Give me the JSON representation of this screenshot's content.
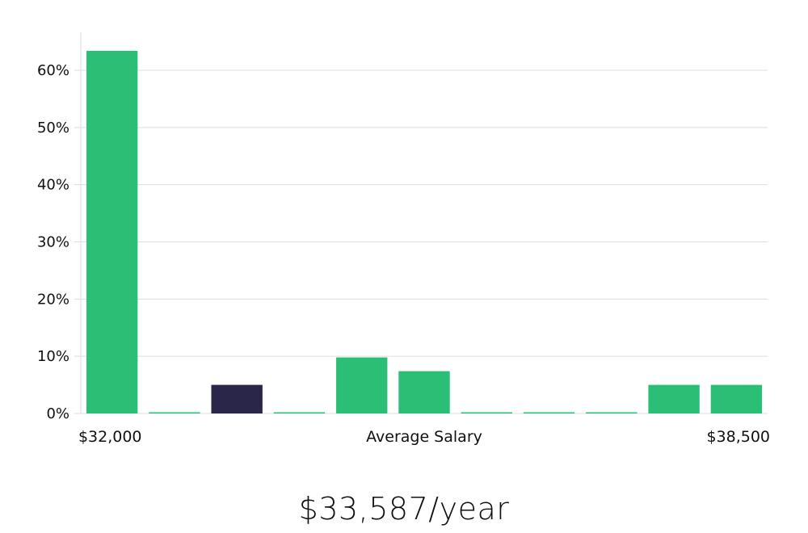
{
  "chart_data": {
    "type": "bar",
    "categories": [
      "$32,000",
      "",
      "",
      "",
      "",
      "",
      "",
      "",
      "",
      "",
      "$38,500"
    ],
    "series": [
      {
        "values": [
          63.4,
          0,
          5.0,
          0,
          9.8,
          7.4,
          0,
          0,
          0,
          5.0,
          5.0
        ]
      }
    ],
    "highlight_index": 2,
    "ylim": [
      0,
      60
    ],
    "y_ticks": [
      "0%",
      "10%",
      "20%",
      "30%",
      "40%",
      "50%",
      "60%"
    ],
    "y_tick_values": [
      0,
      10,
      20,
      30,
      40,
      50,
      60
    ],
    "xlabel": "Average Salary",
    "x_min_label": "$32,000",
    "x_max_label": "$38,500",
    "grid": true,
    "colors": {
      "bar": "#2bbf76",
      "highlight": "#29264a",
      "grid": "#dddddd",
      "axis": "#dddddd"
    }
  },
  "summary": {
    "average_salary": "$33,587/year"
  }
}
